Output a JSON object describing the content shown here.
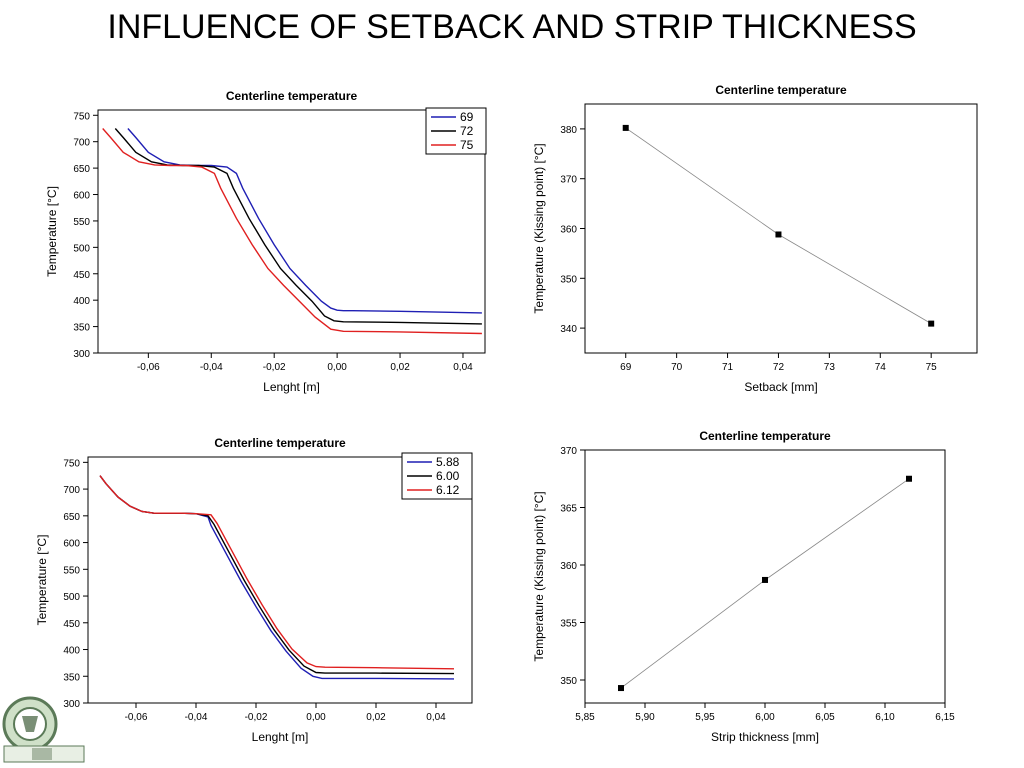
{
  "slide": {
    "title": "INFLUENCE OF SETBACK AND STRIP THICKNESS"
  },
  "chart_data": [
    {
      "id": "c1",
      "type": "line",
      "title": "Centerline temperature",
      "xlabel": "Lenght [m]",
      "ylabel": "Temperature [°C]",
      "xlim": [
        -0.076,
        0.047
      ],
      "ylim": [
        300,
        760
      ],
      "xticks": [
        -0.06,
        -0.04,
        -0.02,
        0.0,
        0.02,
        0.04
      ],
      "xticklabels": [
        "-0,06",
        "-0,04",
        "-0,02",
        "0,00",
        "0,02",
        "0,04"
      ],
      "yticks": [
        300,
        350,
        400,
        450,
        500,
        550,
        600,
        650,
        700,
        750
      ],
      "yticklabels": [
        "300",
        "350",
        "400",
        "450",
        "500",
        "550",
        "600",
        "650",
        "700",
        "750"
      ],
      "legend": "top-right",
      "series": [
        {
          "name": "69",
          "color": "#1f1fb4",
          "x": [
            -0.0665,
            -0.064,
            -0.06,
            -0.055,
            -0.05,
            -0.045,
            -0.04,
            -0.035,
            -0.032,
            -0.03,
            -0.025,
            -0.02,
            -0.015,
            -0.01,
            -0.005,
            -0.002,
            0.0,
            0.002,
            0.005,
            0.02,
            0.046
          ],
          "y": [
            725,
            708,
            680,
            662,
            656,
            655,
            655,
            652,
            640,
            612,
            555,
            505,
            460,
            428,
            398,
            385,
            381,
            380,
            380,
            379,
            376
          ]
        },
        {
          "name": "72",
          "color": "#000000",
          "x": [
            -0.0705,
            -0.068,
            -0.064,
            -0.059,
            -0.054,
            -0.049,
            -0.044,
            -0.039,
            -0.035,
            -0.033,
            -0.028,
            -0.023,
            -0.018,
            -0.013,
            -0.008,
            -0.004,
            -0.001,
            0.002,
            0.02,
            0.046
          ],
          "y": [
            725,
            708,
            680,
            662,
            656,
            655,
            655,
            652,
            640,
            612,
            555,
            505,
            460,
            428,
            398,
            370,
            361,
            359,
            358,
            355
          ]
        },
        {
          "name": "75",
          "color": "#e02020",
          "x": [
            -0.0745,
            -0.072,
            -0.068,
            -0.063,
            -0.058,
            -0.053,
            -0.048,
            -0.043,
            -0.039,
            -0.037,
            -0.032,
            -0.027,
            -0.022,
            -0.017,
            -0.012,
            -0.007,
            -0.002,
            0.002,
            0.02,
            0.046
          ],
          "y": [
            725,
            708,
            680,
            662,
            656,
            655,
            655,
            652,
            640,
            612,
            555,
            505,
            460,
            428,
            398,
            368,
            345,
            341,
            340,
            337
          ]
        }
      ]
    },
    {
      "id": "c2",
      "type": "line",
      "title": "Centerline temperature",
      "xlabel": "Setback [mm]",
      "ylabel": "Temperature (Kissing point) [°C]",
      "xlim": [
        68.2,
        75.9
      ],
      "ylim": [
        335,
        385
      ],
      "xticks": [
        69,
        70,
        71,
        72,
        73,
        74,
        75
      ],
      "xticklabels": [
        "69",
        "70",
        "71",
        "72",
        "73",
        "74",
        "75"
      ],
      "yticks": [
        340,
        350,
        360,
        370,
        380
      ],
      "yticklabels": [
        "340",
        "350",
        "360",
        "370",
        "380"
      ],
      "series": [
        {
          "color": "#888888",
          "x": [
            69,
            72,
            75
          ],
          "y": [
            380.2,
            358.8,
            340.9
          ]
        }
      ]
    },
    {
      "id": "c3",
      "type": "line",
      "title": "Centerline temperature",
      "xlabel": "Lenght [m]",
      "ylabel": "Temperature [°C]",
      "xlim": [
        -0.076,
        0.052
      ],
      "ylim": [
        300,
        760
      ],
      "xticks": [
        -0.06,
        -0.04,
        -0.02,
        0.0,
        0.02,
        0.04
      ],
      "xticklabels": [
        "-0,06",
        "-0,04",
        "-0,02",
        "0,00",
        "0,02",
        "0,04"
      ],
      "yticks": [
        300,
        350,
        400,
        450,
        500,
        550,
        600,
        650,
        700,
        750
      ],
      "yticklabels": [
        "300",
        "350",
        "400",
        "450",
        "500",
        "550",
        "600",
        "650",
        "700",
        "750"
      ],
      "legend": "top-right",
      "series": [
        {
          "name": "5.88",
          "color": "#1f1fb4",
          "x": [
            -0.072,
            -0.07,
            -0.066,
            -0.062,
            -0.058,
            -0.054,
            -0.05,
            -0.045,
            -0.04,
            -0.036,
            -0.035,
            -0.03,
            -0.025,
            -0.02,
            -0.015,
            -0.01,
            -0.005,
            -0.001,
            0.002,
            0.02,
            0.046
          ],
          "y": [
            725,
            710,
            685,
            668,
            658,
            655,
            655,
            655,
            654,
            648,
            632,
            580,
            528,
            480,
            435,
            397,
            365,
            350,
            346,
            346,
            345
          ]
        },
        {
          "name": "6.00",
          "color": "#000000",
          "x": [
            -0.072,
            -0.07,
            -0.066,
            -0.062,
            -0.058,
            -0.054,
            -0.05,
            -0.045,
            -0.04,
            -0.036,
            -0.034,
            -0.029,
            -0.024,
            -0.019,
            -0.014,
            -0.009,
            -0.004,
            0.0,
            0.003,
            0.02,
            0.046
          ],
          "y": [
            725,
            710,
            685,
            668,
            658,
            655,
            655,
            655,
            654,
            650,
            634,
            582,
            530,
            482,
            437,
            399,
            369,
            357,
            356,
            356,
            355
          ]
        },
        {
          "name": "6.12",
          "color": "#e02020",
          "x": [
            -0.072,
            -0.07,
            -0.066,
            -0.062,
            -0.058,
            -0.054,
            -0.05,
            -0.045,
            -0.04,
            -0.035,
            -0.033,
            -0.028,
            -0.023,
            -0.018,
            -0.013,
            -0.008,
            -0.003,
            0.0,
            0.003,
            0.02,
            0.046
          ],
          "y": [
            725,
            710,
            685,
            668,
            658,
            655,
            655,
            655,
            654,
            652,
            636,
            584,
            532,
            484,
            439,
            401,
            375,
            368,
            367,
            366,
            364
          ]
        }
      ]
    },
    {
      "id": "c4",
      "type": "line",
      "title": "Centerline temperature",
      "xlabel": "Strip thickness [mm]",
      "ylabel": "Temperature (Kissing point) [°C]",
      "xlim": [
        5.85,
        6.15
      ],
      "ylim": [
        348,
        370
      ],
      "xticks": [
        5.85,
        5.9,
        5.95,
        6.0,
        6.05,
        6.1,
        6.15
      ],
      "xticklabels": [
        "5,85",
        "5,90",
        "5,95",
        "6,00",
        "6,05",
        "6,10",
        "6,15"
      ],
      "yticks": [
        350,
        355,
        360,
        365,
        370
      ],
      "yticklabels": [
        "350",
        "355",
        "360",
        "365",
        "370"
      ],
      "series": [
        {
          "color": "#888888",
          "x": [
            5.88,
            6.0,
            6.12
          ],
          "y": [
            349.3,
            358.7,
            367.5
          ]
        }
      ]
    }
  ]
}
